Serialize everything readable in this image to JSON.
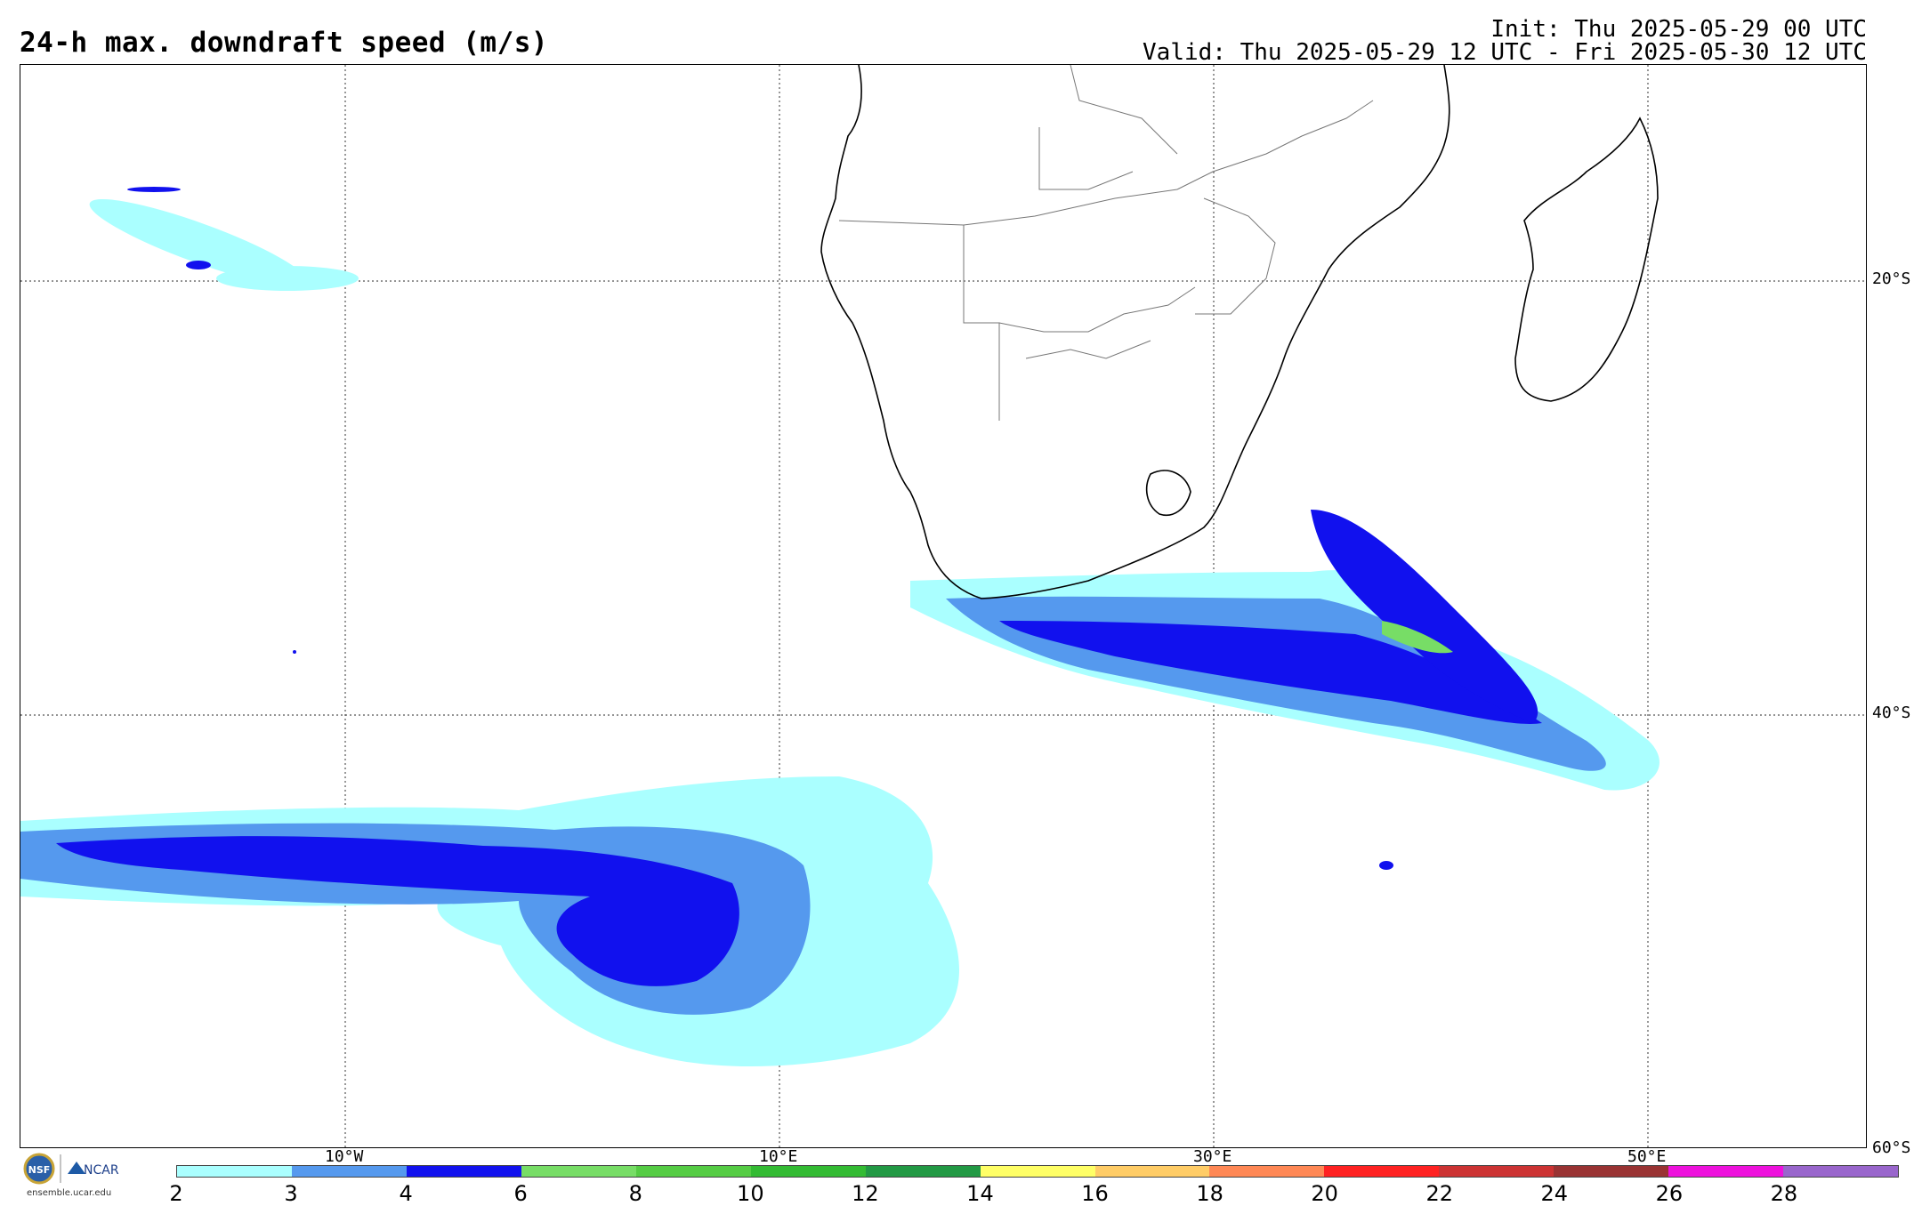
{
  "title": "24-h max. downdraft speed (m/s)",
  "init": "Init: Thu 2025-05-29 00 UTC",
  "valid": "Valid: Thu 2025-05-29 12 UTC - Fri 2025-05-30 12 UTC",
  "lat_labels": [
    "20°S",
    "40°S",
    "60°S"
  ],
  "lon_labels": [
    "10°W",
    "10°E",
    "30°E",
    "50°E"
  ],
  "logo": {
    "org1": "NSF",
    "org2": "NCAR",
    "url": "ensemble.ucar.edu"
  },
  "colorbar": {
    "ticks": [
      "2",
      "3",
      "4",
      "6",
      "8",
      "10",
      "12",
      "14",
      "16",
      "18",
      "20",
      "22",
      "24",
      "26",
      "28"
    ],
    "colors": [
      "#aaffff",
      "#5599ee",
      "#1111ee",
      "#77dd66",
      "#55cc44",
      "#33bb33",
      "#229944",
      "#ffff66",
      "#ffcc66",
      "#ff8855",
      "#ff2222",
      "#cc3333",
      "#993333",
      "#ee11dd",
      "#9966cc"
    ]
  }
}
